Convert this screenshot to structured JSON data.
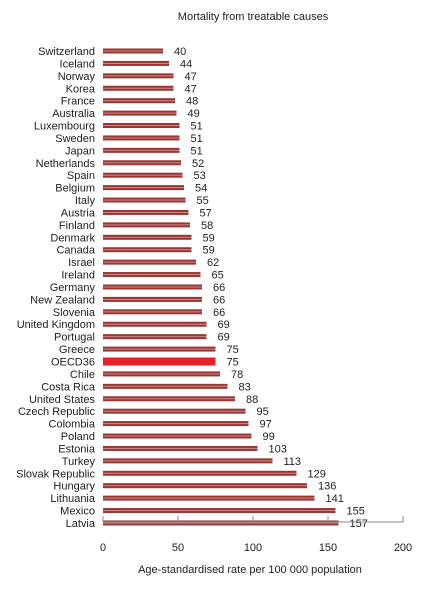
{
  "chart_data": {
    "type": "bar",
    "orientation": "horizontal",
    "title": "Mortality from treatable causes",
    "xlabel": "Age-standardised rate per 100 000 population",
    "ylabel": "",
    "xlim": [
      0,
      200
    ],
    "xticks": [
      "0",
      "50",
      "100",
      "150",
      "200"
    ],
    "grid": false,
    "legend": "none",
    "categories": [
      "Switzerland",
      "Iceland",
      "Norway",
      "Korea",
      "France",
      "Australia",
      "Luxembourg",
      "Sweden",
      "Japan",
      "Netherlands",
      "Spain",
      "Belgium",
      "Italy",
      "Austria",
      "Finland",
      "Denmark",
      "Canada",
      "Israel",
      "Ireland",
      "Germany",
      "New Zealand",
      "Slovenia",
      "United Kingdom",
      "Portugal",
      "Greece",
      "OECD36",
      "Chile",
      "Costa Rica",
      "United States",
      "Czech Republic",
      "Colombia",
      "Poland",
      "Estonia",
      "Turkey",
      "Slovak Republic",
      "Hungary",
      "Lithuania",
      "Mexico",
      "Latvia"
    ],
    "values": [
      40,
      44,
      47,
      47,
      48,
      49,
      51,
      51,
      51,
      52,
      53,
      54,
      55,
      57,
      58,
      59,
      59,
      62,
      65,
      66,
      66,
      66,
      69,
      69,
      75,
      75,
      78,
      83,
      88,
      95,
      97,
      99,
      103,
      113,
      129,
      136,
      141,
      155,
      157
    ],
    "highlight": "OECD36",
    "colors": {
      "bar": "#9b3534",
      "highlight": "#e5202b",
      "bar_light": "#c98b89"
    }
  }
}
